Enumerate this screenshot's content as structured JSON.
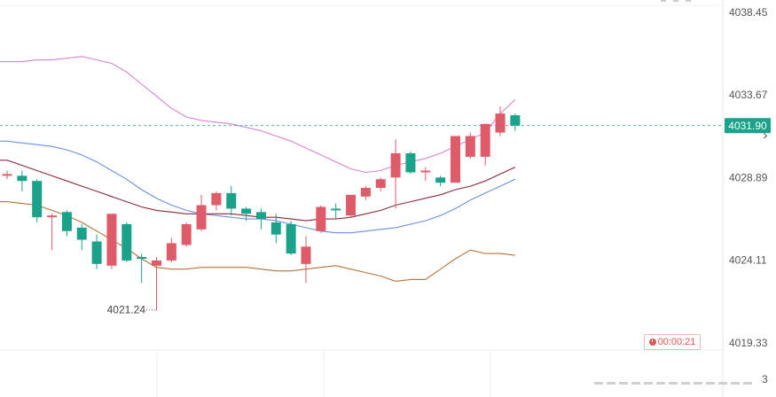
{
  "chart_data": {
    "type": "candlestick",
    "y_axis": {
      "ticks": [
        "4038.45",
        "4033.67",
        "4028.89",
        "4024.11",
        "4019.33"
      ],
      "ylim": [
        4019.33,
        4038.45
      ],
      "position": "right"
    },
    "current_price": "4031.90",
    "low_marker": "4021.24",
    "candles": [
      {
        "o": 4029.0,
        "h": 4029.3,
        "l": 4028.8,
        "c": 4029.1
      },
      {
        "o": 4029.0,
        "h": 4029.3,
        "l": 4028.1,
        "c": 4028.7
      },
      {
        "o": 4028.7,
        "h": 4028.8,
        "l": 4026.3,
        "c": 4026.6
      },
      {
        "o": 4026.6,
        "h": 4026.8,
        "l": 4024.7,
        "c": 4026.7
      },
      {
        "o": 4026.9,
        "h": 4027.0,
        "l": 4025.5,
        "c": 4025.8
      },
      {
        "o": 4026.0,
        "h": 4026.2,
        "l": 4024.7,
        "c": 4025.3
      },
      {
        "o": 4025.2,
        "h": 4025.6,
        "l": 4023.6,
        "c": 4023.9
      },
      {
        "o": 4023.8,
        "h": 4026.8,
        "l": 4023.6,
        "c": 4026.8
      },
      {
        "o": 4026.2,
        "h": 4026.3,
        "l": 4024.0,
        "c": 4024.1
      },
      {
        "o": 4024.3,
        "h": 4024.5,
        "l": 4022.8,
        "c": 4024.2
      },
      {
        "o": 4023.8,
        "h": 4024.3,
        "l": 4021.2,
        "c": 4024.1
      },
      {
        "o": 4024.1,
        "h": 4025.4,
        "l": 4024.0,
        "c": 4025.1
      },
      {
        "o": 4025.0,
        "h": 4026.3,
        "l": 4024.9,
        "c": 4026.2
      },
      {
        "o": 4025.9,
        "h": 4027.9,
        "l": 4025.8,
        "c": 4027.3
      },
      {
        "o": 4027.3,
        "h": 4028.1,
        "l": 4027.0,
        "c": 4028.0
      },
      {
        "o": 4028.0,
        "h": 4028.4,
        "l": 4026.7,
        "c": 4027.1
      },
      {
        "o": 4027.1,
        "h": 4027.2,
        "l": 4026.4,
        "c": 4026.8
      },
      {
        "o": 4026.9,
        "h": 4027.1,
        "l": 4025.9,
        "c": 4026.5
      },
      {
        "o": 4026.3,
        "h": 4026.8,
        "l": 4025.1,
        "c": 4025.6
      },
      {
        "o": 4026.2,
        "h": 4026.4,
        "l": 4024.4,
        "c": 4024.5
      },
      {
        "o": 4023.9,
        "h": 4025.5,
        "l": 4022.8,
        "c": 4024.9
      },
      {
        "o": 4025.8,
        "h": 4027.3,
        "l": 4025.7,
        "c": 4027.2
      },
      {
        "o": 4027.1,
        "h": 4027.4,
        "l": 4026.5,
        "c": 4027.0
      },
      {
        "o": 4026.7,
        "h": 4027.8,
        "l": 4026.6,
        "c": 4027.9
      },
      {
        "o": 4027.8,
        "h": 4028.4,
        "l": 4027.6,
        "c": 4028.3
      },
      {
        "o": 4028.3,
        "h": 4028.9,
        "l": 4028.1,
        "c": 4028.8
      },
      {
        "o": 4028.9,
        "h": 4031.1,
        "l": 4027.1,
        "c": 4030.3
      },
      {
        "o": 4030.3,
        "h": 4030.4,
        "l": 4029.1,
        "c": 4029.2
      },
      {
        "o": 4029.2,
        "h": 4029.5,
        "l": 4028.7,
        "c": 4029.3
      },
      {
        "o": 4028.9,
        "h": 4029.0,
        "l": 4028.4,
        "c": 4028.6
      },
      {
        "o": 4028.6,
        "h": 4031.3,
        "l": 4028.6,
        "c": 4031.3
      },
      {
        "o": 4030.1,
        "h": 4031.5,
        "l": 4030.0,
        "c": 4031.3
      },
      {
        "o": 4030.1,
        "h": 4032.0,
        "l": 4029.6,
        "c": 4032.0
      },
      {
        "o": 4031.5,
        "h": 4033.0,
        "l": 4031.3,
        "c": 4032.6
      },
      {
        "o": 4032.5,
        "h": 4032.6,
        "l": 4031.6,
        "c": 4031.9
      }
    ],
    "bollinger_upper": [
      4035.6,
      4035.6,
      4035.7,
      4035.7,
      4035.8,
      4035.9,
      4035.7,
      4035.5,
      4035.0,
      4034.3,
      4033.6,
      4032.9,
      4032.4,
      4032.2,
      4032.1,
      4032.0,
      4031.8,
      4031.6,
      4031.3,
      4031.0,
      4030.6,
      4030.2,
      4029.8,
      4029.4,
      4029.2,
      4029.3,
      4029.6,
      4029.8,
      4030.0,
      4030.3,
      4030.7,
      4031.1,
      4031.5,
      4032.6,
      4033.4
    ],
    "ma_blue": [
      4031.0,
      4030.9,
      4030.8,
      4030.7,
      4030.5,
      4030.2,
      4029.8,
      4029.3,
      4028.8,
      4028.2,
      4027.7,
      4027.3,
      4027.0,
      4026.8,
      4026.7,
      4026.6,
      4026.5,
      4026.5,
      4026.4,
      4026.2,
      4026.0,
      4025.8,
      4025.7,
      4025.7,
      4025.8,
      4025.9,
      4026.0,
      4026.2,
      4026.4,
      4026.7,
      4027.1,
      4027.6,
      4028.0,
      4028.4,
      4028.8
    ],
    "ma_dark": [
      4029.9,
      4029.6,
      4029.3,
      4029.0,
      4028.7,
      4028.4,
      4028.1,
      4027.8,
      4027.5,
      4027.2,
      4027.0,
      4026.9,
      4026.8,
      4026.8,
      4026.8,
      4026.8,
      4026.7,
      4026.6,
      4026.6,
      4026.5,
      4026.4,
      4026.5,
      4026.5,
      4026.6,
      4026.8,
      4027.0,
      4027.3,
      4027.5,
      4027.7,
      4027.9,
      4028.2,
      4028.4,
      4028.7,
      4029.1,
      4029.5
    ],
    "bollinger_lower": [
      4027.5,
      4027.4,
      4027.3,
      4027.0,
      4026.7,
      4026.3,
      4025.8,
      4025.3,
      4024.8,
      4024.2,
      4023.7,
      4023.6,
      4023.6,
      4023.7,
      4023.7,
      4023.7,
      4023.7,
      4023.6,
      4023.5,
      4023.5,
      4023.6,
      4023.7,
      4023.8,
      4023.6,
      4023.4,
      4023.2,
      4022.9,
      4023.0,
      4023.0,
      4023.6,
      4024.2,
      4024.7,
      4024.5,
      4024.5,
      4024.4
    ],
    "colors": {
      "up": "#de5b6a",
      "down": "#1aa38a",
      "boll_upper": "#d884cf",
      "ma_blue": "#6b8fe2",
      "ma_dark": "#8b2a3a",
      "boll_lower": "#b5733b",
      "price_line": "#1aa38a",
      "price_tag_bg": "#1aa38a"
    }
  },
  "ui": {
    "timer": "00:00:21",
    "timer_icon": "clock-icon",
    "right_chevron": "›",
    "bottom_digit": "3"
  }
}
